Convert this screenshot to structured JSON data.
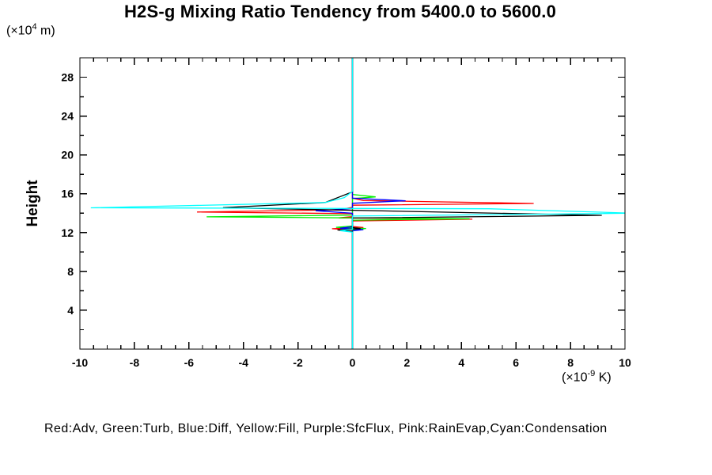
{
  "title": "H2S-g Mixing Ratio Tendency from 5400.0 to 5600.0",
  "legend": {
    "text": "Red:Adv, Green:Turb, Blue:Diff, Yellow:Fill, Purple:SfcFlux, Pink:RainEvap,Cyan:Condensation"
  },
  "chart_data": {
    "type": "line",
    "title": "H2S-g Mixing Ratio Tendency from 5400.0 to 5600.0",
    "ylabel": "Height",
    "y_unit": {
      "pre": "(×10",
      "exp": "4",
      "post": " m)"
    },
    "x_unit": {
      "pre": "(×10",
      "exp": "-9",
      "post": " K)"
    },
    "xlim": [
      -10,
      10
    ],
    "ylim": [
      0,
      30
    ],
    "x_major_ticks": [
      -10,
      -8,
      -6,
      -4,
      -2,
      0,
      2,
      4,
      6,
      8,
      10
    ],
    "x_minor_step": 0.5,
    "y_major_ticks": [
      4,
      8,
      12,
      16,
      20,
      24,
      28
    ],
    "y_minor_step": 2,
    "grid": false,
    "legend_position": "bottom-text-line",
    "zero_line_color": "#00ffff",
    "frame_color": "#000000",
    "series": [
      {
        "name": "Fill",
        "color_name": "yellow",
        "color": "#ffff00",
        "points": [
          [
            0,
            0
          ],
          [
            0,
            30
          ]
        ]
      },
      {
        "name": "SfcFlux",
        "color_name": "purple",
        "color": "#a020f0",
        "points": [
          [
            0,
            0
          ],
          [
            0,
            30
          ]
        ]
      },
      {
        "name": "RainEvap",
        "color_name": "pink",
        "color": "#ff80ff",
        "points": [
          [
            0,
            0
          ],
          [
            0,
            30
          ]
        ]
      },
      {
        "name": "Adv",
        "color_name": "red",
        "color": "#ff0000",
        "points": [
          [
            0,
            0
          ],
          [
            0,
            12.25
          ],
          [
            -0.75,
            12.4
          ],
          [
            0.4,
            12.52
          ],
          [
            0,
            12.62
          ],
          [
            0,
            13.2
          ],
          [
            4.4,
            13.38
          ],
          [
            -0.5,
            13.52
          ],
          [
            0,
            13.65
          ],
          [
            0,
            13.95
          ],
          [
            -5.7,
            14.12
          ],
          [
            -0.5,
            14.35
          ],
          [
            0,
            14.6
          ],
          [
            0,
            14.82
          ],
          [
            6.65,
            15.0
          ],
          [
            0.4,
            15.3
          ],
          [
            0,
            15.55
          ],
          [
            0,
            30
          ]
        ]
      },
      {
        "name": "Turb",
        "color_name": "green",
        "color": "#00ee00",
        "points": [
          [
            0,
            0
          ],
          [
            0,
            12.3
          ],
          [
            0.5,
            12.42
          ],
          [
            -0.6,
            12.55
          ],
          [
            0,
            12.68
          ],
          [
            0,
            13.28
          ],
          [
            4.3,
            13.43
          ],
          [
            -5.35,
            13.62
          ],
          [
            0,
            13.8
          ],
          [
            0,
            15.5
          ],
          [
            0.85,
            15.68
          ],
          [
            0,
            15.92
          ],
          [
            0,
            30
          ]
        ]
      },
      {
        "name": "Diff",
        "color_name": "blue",
        "color": "#0000ff",
        "points": [
          [
            0,
            0
          ],
          [
            0,
            12.18
          ],
          [
            0.4,
            12.3
          ],
          [
            -0.45,
            12.45
          ],
          [
            0,
            12.6
          ],
          [
            0,
            14.0
          ],
          [
            -1.35,
            14.25
          ],
          [
            0,
            14.48
          ],
          [
            0,
            15.02
          ],
          [
            1.95,
            15.28
          ],
          [
            0,
            15.55
          ],
          [
            0,
            30
          ]
        ]
      },
      {
        "name": "unlabeled-black",
        "color_name": "black",
        "color": "#000000",
        "points": [
          [
            0,
            0
          ],
          [
            0,
            12.12
          ],
          [
            -0.55,
            12.27
          ],
          [
            0.3,
            12.4
          ],
          [
            0,
            12.52
          ],
          [
            0,
            13.5
          ],
          [
            9.15,
            13.78
          ],
          [
            -4.75,
            14.57
          ],
          [
            -1.0,
            15.1
          ],
          [
            0,
            16.2
          ],
          [
            0,
            30
          ]
        ]
      },
      {
        "name": "Condensation",
        "color_name": "cyan",
        "color": "#00ffff",
        "points": [
          [
            0,
            0
          ],
          [
            0,
            12.05
          ],
          [
            -0.45,
            12.2
          ],
          [
            0,
            12.35
          ],
          [
            0,
            13.7
          ],
          [
            10.3,
            14.0
          ],
          [
            5.0,
            14.45
          ],
          [
            -9.6,
            14.55
          ],
          [
            -1.0,
            15.1
          ],
          [
            -0.3,
            15.6
          ],
          [
            0,
            16.25
          ],
          [
            0,
            30
          ]
        ]
      }
    ]
  }
}
